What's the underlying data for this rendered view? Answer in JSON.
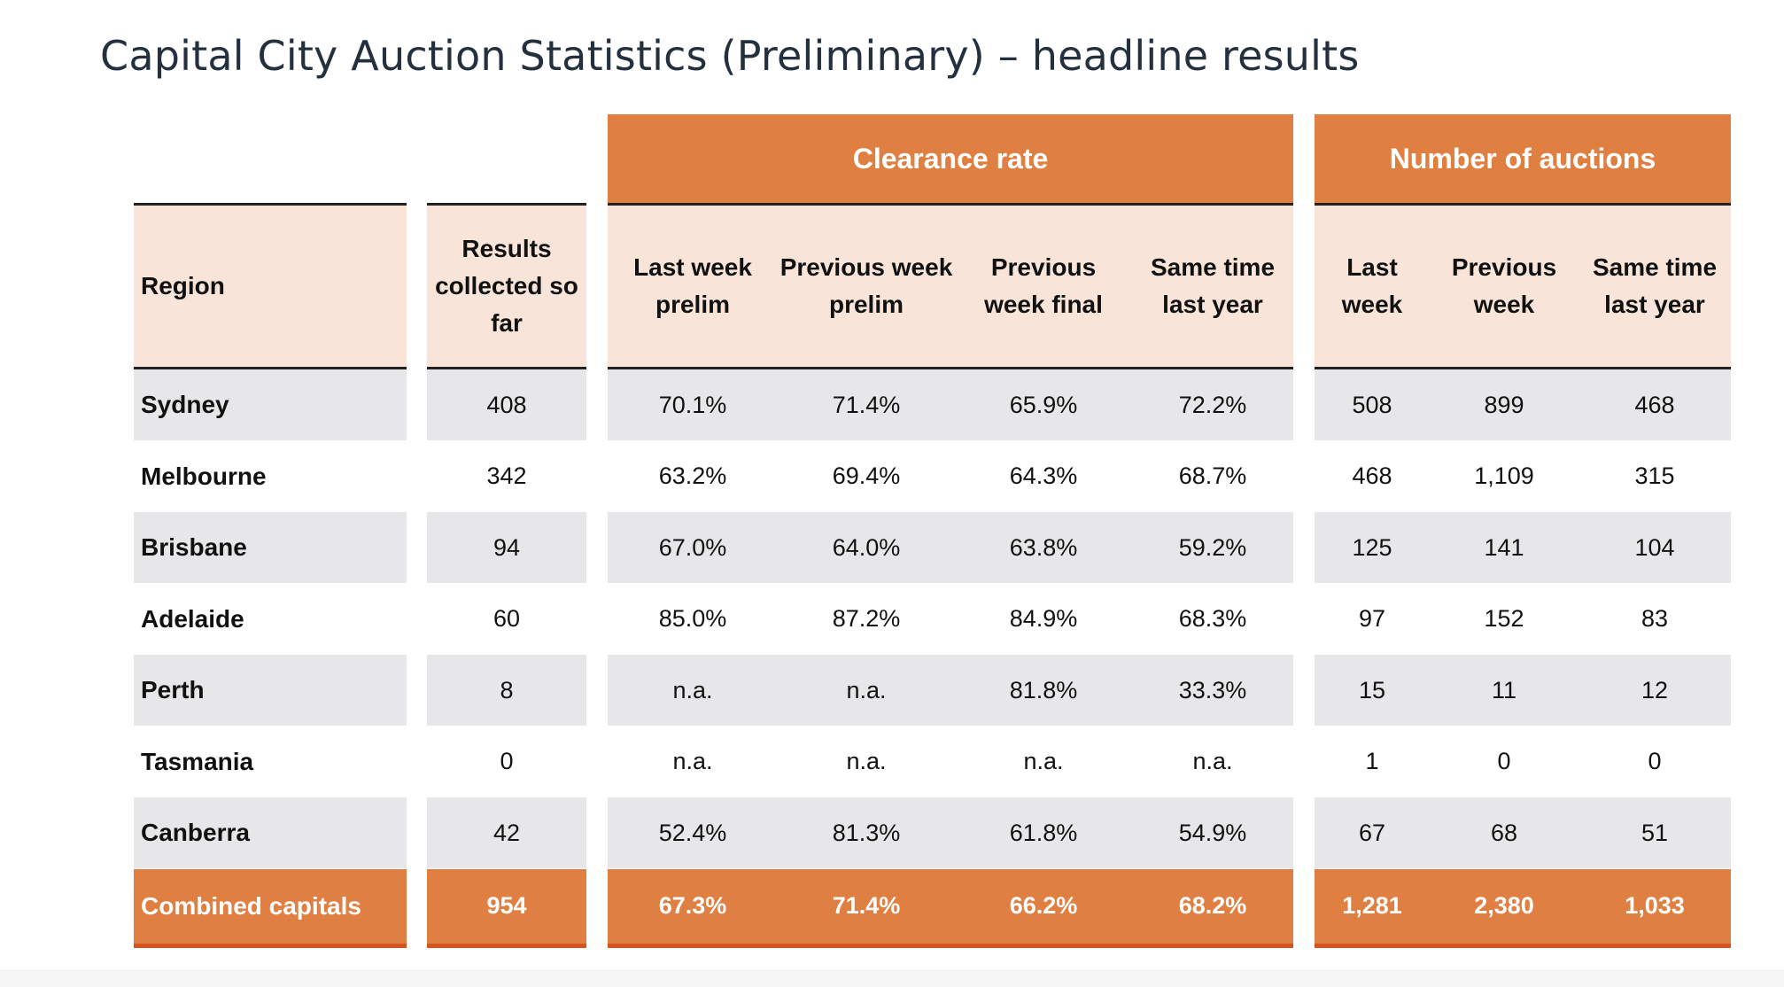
{
  "title": "Capital City Auction Statistics (Preliminary) – headline results",
  "groups": {
    "clearance": "Clearance rate",
    "auctions": "Number of auctions"
  },
  "headers": {
    "region": "Region",
    "results": [
      "Results",
      "collected so",
      "far"
    ],
    "cr_last_week": [
      "Last week",
      "prelim"
    ],
    "cr_prev_week_prelim": [
      "Previous week",
      "prelim"
    ],
    "cr_prev_week_final": [
      "Previous",
      "week final"
    ],
    "cr_same_time": [
      "Same time",
      "last year"
    ],
    "na_last_week": [
      "Last",
      "week"
    ],
    "na_prev_week": [
      "Previous",
      "week"
    ],
    "na_same_time": [
      "Same time",
      "last year"
    ]
  },
  "rows": [
    {
      "region": "Sydney",
      "results": "408",
      "cr": [
        "70.1%",
        "71.4%",
        "65.9%",
        "72.2%"
      ],
      "na": [
        "508",
        "899",
        "468"
      ]
    },
    {
      "region": "Melbourne",
      "results": "342",
      "cr": [
        "63.2%",
        "69.4%",
        "64.3%",
        "68.7%"
      ],
      "na": [
        "468",
        "1,109",
        "315"
      ]
    },
    {
      "region": "Brisbane",
      "results": "94",
      "cr": [
        "67.0%",
        "64.0%",
        "63.8%",
        "59.2%"
      ],
      "na": [
        "125",
        "141",
        "104"
      ]
    },
    {
      "region": "Adelaide",
      "results": "60",
      "cr": [
        "85.0%",
        "87.2%",
        "84.9%",
        "68.3%"
      ],
      "na": [
        "97",
        "152",
        "83"
      ]
    },
    {
      "region": "Perth",
      "results": "8",
      "cr": [
        "n.a.",
        "n.a.",
        "81.8%",
        "33.3%"
      ],
      "na": [
        "15",
        "11",
        "12"
      ]
    },
    {
      "region": "Tasmania",
      "results": "0",
      "cr": [
        "n.a.",
        "n.a.",
        "n.a.",
        "n.a."
      ],
      "na": [
        "1",
        "0",
        "0"
      ]
    },
    {
      "region": "Canberra",
      "results": "42",
      "cr": [
        "52.4%",
        "81.3%",
        "61.8%",
        "54.9%"
      ],
      "na": [
        "67",
        "68",
        "51"
      ]
    }
  ],
  "total": {
    "region": "Combined capitals",
    "results": "954",
    "cr": [
      "67.3%",
      "71.4%",
      "66.2%",
      "68.2%"
    ],
    "na": [
      "1,281",
      "2,380",
      "1,033"
    ]
  },
  "colors": {
    "accent": "#e07f42",
    "header_bg": "#f9e4d9",
    "row_shade": "#e7e7ea",
    "text": "#24303d"
  }
}
